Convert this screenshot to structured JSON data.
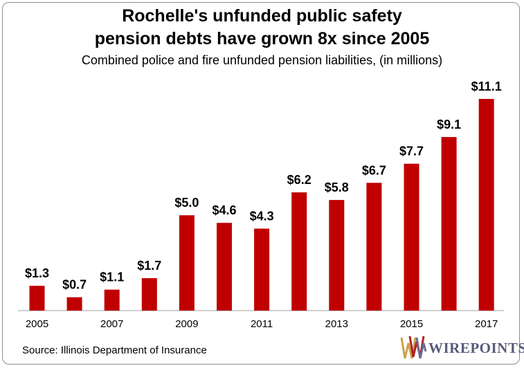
{
  "colors": {
    "bar": "#c00000",
    "axis": "#bfbfbf",
    "text": "#000000"
  },
  "source": "Source: Illinois Department of Insurance",
  "logo": {
    "text": "WIREPOINTS",
    "icon": "wirepoints-logo-icon"
  },
  "chart_data": {
    "type": "bar",
    "title_lines": [
      "Rochelle's unfunded public safety",
      "pension debts have grown 8x since 2005"
    ],
    "subtitle": "Combined police and fire unfunded pension liabilities, (in millions)",
    "categories": [
      "2005",
      "2006",
      "2007",
      "2008",
      "2009",
      "2010",
      "2011",
      "2012",
      "2013",
      "2014",
      "2015",
      "2016",
      "2017"
    ],
    "tick_labels": [
      "2005",
      "",
      "2007",
      "",
      "2009",
      "",
      "2011",
      "",
      "2013",
      "",
      "2015",
      "",
      "2017"
    ],
    "values": [
      1.3,
      0.7,
      1.1,
      1.7,
      5.0,
      4.6,
      4.3,
      6.2,
      5.8,
      6.7,
      7.7,
      9.1,
      11.1
    ],
    "data_labels": [
      "$1.3",
      "$0.7",
      "$1.1",
      "$1.7",
      "$5.0",
      "$4.6",
      "$4.3",
      "$6.2",
      "$5.8",
      "$6.7",
      "$7.7",
      "$9.1",
      "$11.1"
    ],
    "xlabel": "",
    "ylabel": "",
    "ylim": [
      0,
      11.1
    ],
    "grid": false
  }
}
